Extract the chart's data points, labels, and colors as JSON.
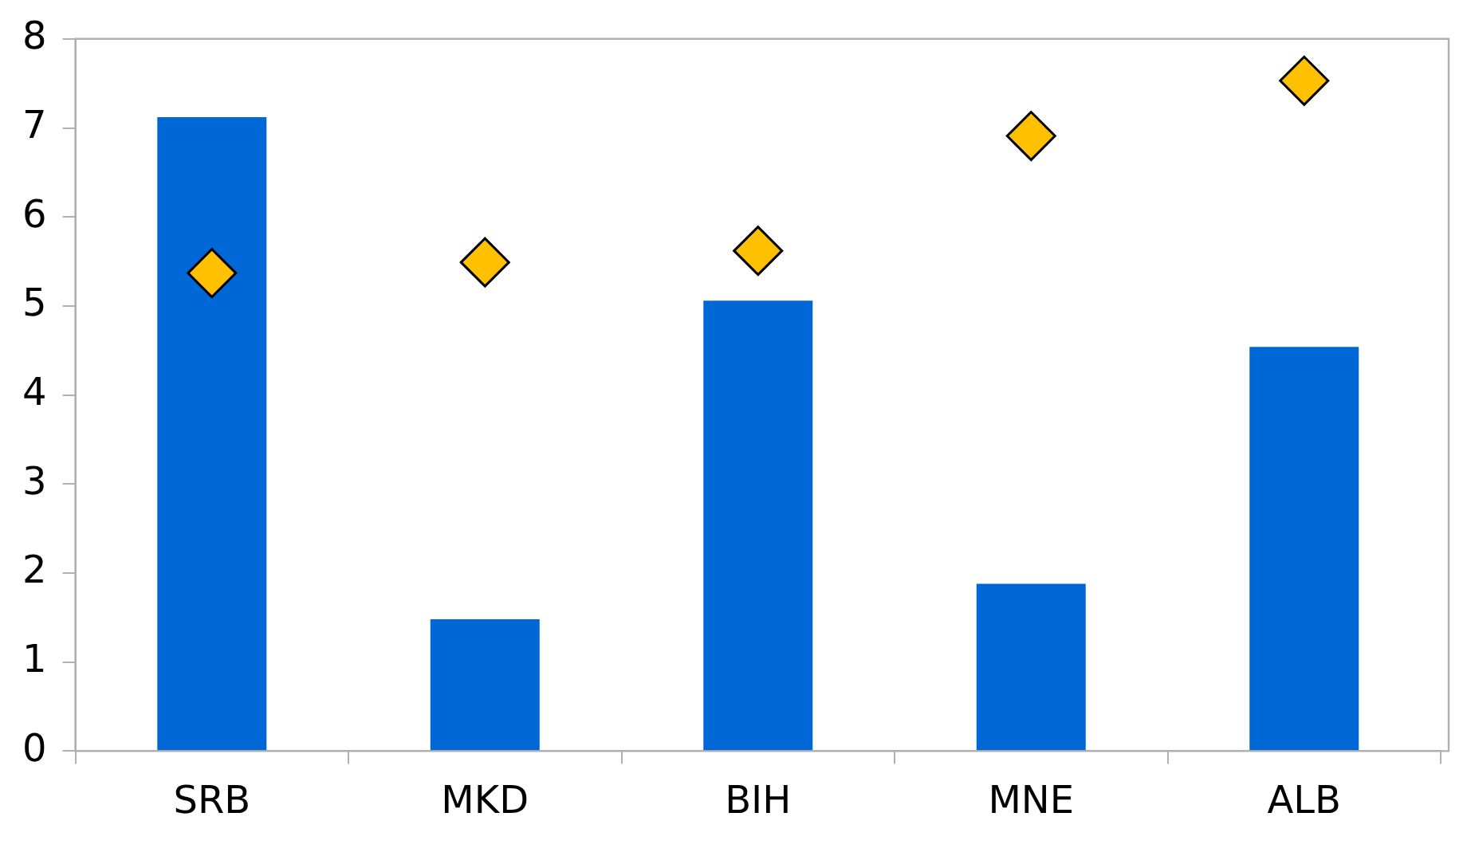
{
  "chart_data": {
    "type": "bar",
    "categories": [
      "SRB",
      "MKD",
      "BIH",
      "MNE",
      "ALB"
    ],
    "series": [
      {
        "color": "#0068d6",
        "values": [
          7.12,
          1.48,
          5.06,
          1.88,
          4.54
        ]
      },
      {
        "type": "scatter",
        "color": "#ffc000",
        "values": [
          5.37,
          5.49,
          5.62,
          6.91,
          7.53
        ]
      }
    ],
    "ylim": [
      0,
      8
    ],
    "yticks": [
      0,
      1,
      2,
      3,
      4,
      5,
      6,
      7,
      8
    ],
    "grid": false,
    "legend": false,
    "marker": "diamond"
  }
}
